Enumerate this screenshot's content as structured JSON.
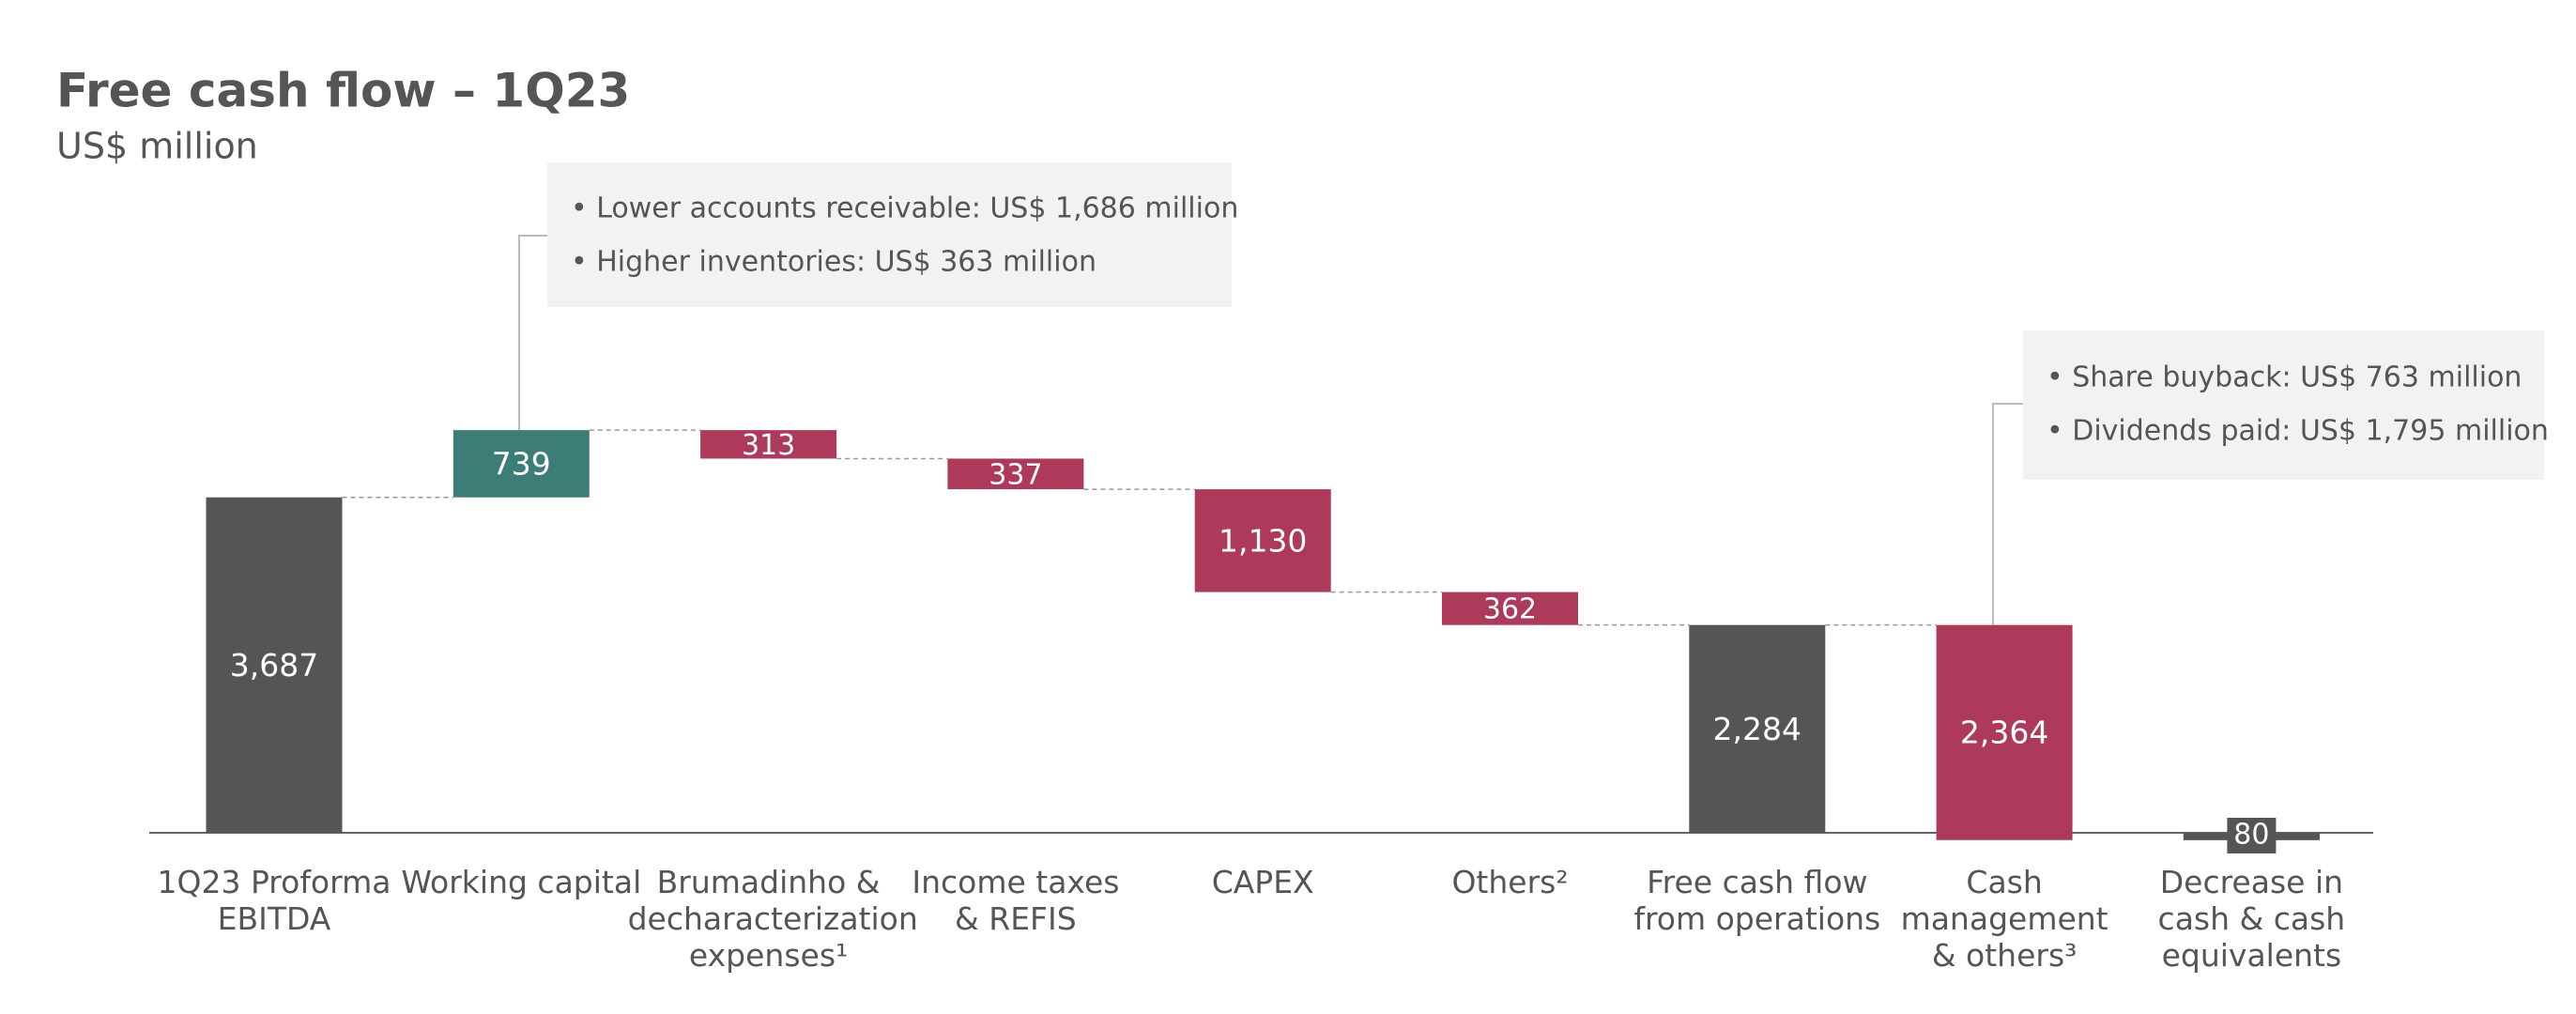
{
  "chart_data": {
    "type": "waterfall",
    "title": "Free cash flow – 1Q23",
    "subtitle": "US$ million",
    "categories": [
      "1Q23 Proforma\nEBITDA",
      "Working capital",
      "Brumadinho &\ndecharacterization\nexpenses¹",
      "Income taxes\n& REFIS",
      "CAPEX",
      "Others²",
      "Free cash flow\nfrom operations",
      "Cash\nmanagement\n& others³",
      "Decrease in\ncash & cash\nequivalents"
    ],
    "values": [
      3687,
      739,
      -313,
      -337,
      -1130,
      -362,
      2284,
      -2364,
      -80
    ],
    "value_labels": [
      "3,687",
      "739",
      "313",
      "337",
      "1,130",
      "362",
      "2,284",
      "2,364",
      "80"
    ],
    "measure": [
      "absolute",
      "relative",
      "relative",
      "relative",
      "relative",
      "relative",
      "total",
      "relative",
      "total"
    ],
    "colors": {
      "total": "#555555",
      "increase": "#3d7d78",
      "decrease": "#ad3a5b"
    },
    "annotations": [
      [
        "• Lower accounts receivable: US$ 1,686 million",
        "• Higher inventories: US$ 363 million"
      ],
      [
        "• Share buyback: US$ 763 million",
        "• Dividends paid: US$ 1,795 million"
      ]
    ]
  }
}
